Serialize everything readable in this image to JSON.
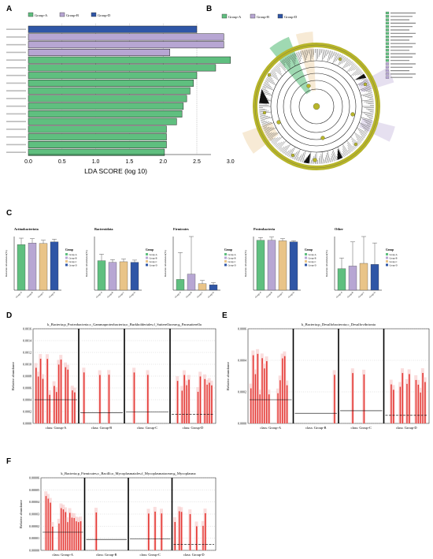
{
  "panel_letters": {
    "A": "A",
    "B": "B",
    "C": "C",
    "D": "D",
    "E": "E",
    "F": "F"
  },
  "colors": {
    "groupA": "#5fbf7f",
    "groupB": "#b7a6d3",
    "groupC": "#e9c488",
    "groupD": "#2f56a6",
    "olive": "#b7b52a",
    "red": "#e53935",
    "lightred": "#f6c6c6"
  },
  "legend_groups": [
    "Group-A",
    "Group-B",
    "Group-D"
  ],
  "chart_data": [
    {
      "type": "bar",
      "panel": "A",
      "orientation": "horizontal",
      "xlabel": "LDA SCORE (log 10)",
      "xticks": [
        "0.0",
        "0.5",
        "1.0",
        "1.5",
        "2.0",
        "2.5",
        "3.0"
      ],
      "xlim": [
        0,
        3.2
      ],
      "legend": [
        "Group-A",
        "Group-B",
        "Group-D"
      ],
      "series": [
        {
          "name": "Group-D",
          "values": [
            2.5
          ]
        },
        {
          "name": "Group-B",
          "values": [
            2.9,
            2.9
          ]
        },
        {
          "name": "Group-B",
          "values": [
            2.1
          ]
        },
        {
          "name": "Group-A",
          "values": [
            3.0,
            2.78,
            2.5,
            2.45,
            2.4,
            2.35,
            2.3,
            2.28,
            2.2,
            2.05,
            2.05,
            2.05,
            2.02
          ]
        }
      ],
      "bars": [
        {
          "group": "Group-D",
          "value": 2.5
        },
        {
          "group": "Group-B",
          "value": 2.9
        },
        {
          "group": "Group-B",
          "value": 2.9
        },
        {
          "group": "Group-B",
          "value": 2.1
        },
        {
          "group": "Group-A",
          "value": 3.0
        },
        {
          "group": "Group-A",
          "value": 2.78
        },
        {
          "group": "Group-A",
          "value": 2.5
        },
        {
          "group": "Group-A",
          "value": 2.45
        },
        {
          "group": "Group-A",
          "value": 2.4
        },
        {
          "group": "Group-A",
          "value": 2.35
        },
        {
          "group": "Group-A",
          "value": 2.3
        },
        {
          "group": "Group-A",
          "value": 2.28
        },
        {
          "group": "Group-A",
          "value": 2.2
        },
        {
          "group": "Group-A",
          "value": 2.05
        },
        {
          "group": "Group-A",
          "value": 2.05
        },
        {
          "group": "Group-A",
          "value": 2.05
        },
        {
          "group": "Group-A",
          "value": 2.02
        }
      ]
    },
    {
      "type": "bar",
      "panel": "C",
      "subplots": [
        {
          "title": "Actinobacteriota",
          "ylabel": "Relative Abundance(%)",
          "categories": [
            "Group-A",
            "Group-B",
            "Group-C",
            "Group-D"
          ],
          "values": [
            0.85,
            0.88,
            0.87,
            0.9
          ],
          "errors": [
            0.12,
            0.08,
            0.06,
            0.05
          ]
        },
        {
          "title": "Bacteroidota",
          "ylabel": "Relative Abundance(%)",
          "categories": [
            "Group-A",
            "Group-B",
            "Group-C",
            "Group-D"
          ],
          "values": [
            0.55,
            0.52,
            0.53,
            0.52
          ],
          "errors": [
            0.12,
            0.05,
            0.05,
            0.04
          ]
        },
        {
          "title": "Firmicutes",
          "ylabel": "Relative Abundance(%)",
          "categories": [
            "Group-A",
            "Group-B",
            "Group-C",
            "Group-D"
          ],
          "values": [
            0.2,
            0.3,
            0.12,
            0.1
          ],
          "errors": [
            0.5,
            0.7,
            0.06,
            0.04
          ]
        },
        {
          "title": "Proteobacteria",
          "ylabel": "Relative Abundance(%)",
          "categories": [
            "Group-A",
            "Group-B",
            "Group-C",
            "Group-D"
          ],
          "values": [
            0.93,
            0.93,
            0.92,
            0.9
          ],
          "errors": [
            0.05,
            0.06,
            0.04,
            0.02
          ]
        },
        {
          "title": "Other",
          "ylabel": "Relative Abundance(%)",
          "categories": [
            "Group-A",
            "Group-B",
            "Group-C",
            "Group-D"
          ],
          "values": [
            0.4,
            0.45,
            0.5,
            0.48
          ],
          "errors": [
            0.2,
            0.45,
            0.5,
            0.4
          ]
        }
      ],
      "legend_title": "Group",
      "legend": [
        "Group-A",
        "Group-B",
        "Group-C",
        "Group-D"
      ]
    },
    {
      "type": "bar",
      "panel": "D",
      "title": "k_Bacteria;p_Proteobacteria;c_Gammaproteobacteria;o_Burkholderiales;f_Sutterellaceae;g_Parasutterella",
      "ylabel": "Relative abundance",
      "yticks": [
        "0.0000",
        "0.0002",
        "0.0004",
        "0.0006",
        "0.0008",
        "0.0010",
        "0.0012",
        "0.0014",
        "0.0016"
      ],
      "categories": [
        "class: Group-A",
        "class: Group-B",
        "class: Group-C",
        "class: Group-D"
      ]
    },
    {
      "type": "bar",
      "panel": "E",
      "title": "k_Bacteria;p_Desulfobacterota;c_Desulfovibrionia",
      "ylabel": "Relative abundance",
      "yticks": [
        "0.0000",
        "0.0002",
        "0.0004",
        "0.0006"
      ],
      "categories": [
        "class: Group-A",
        "class: Group-B",
        "class: Group-C",
        "class: Group-D"
      ]
    },
    {
      "type": "bar",
      "panel": "F",
      "title": "k_Bacteria;p_Firmicutes;c_Bacilli;o_Mycoplasmatales;f_Mycoplasmataceae;g_Mycoplasma",
      "ylabel": "Relative abundance",
      "yticks": [
        "0.00000",
        "0.00001",
        "0.00002",
        "0.00003",
        "0.00004",
        "0.00005",
        "0.00006"
      ],
      "categories": [
        "class: Group-A",
        "class: Group-B",
        "class: Group-C",
        "class: Group-D"
      ]
    }
  ]
}
